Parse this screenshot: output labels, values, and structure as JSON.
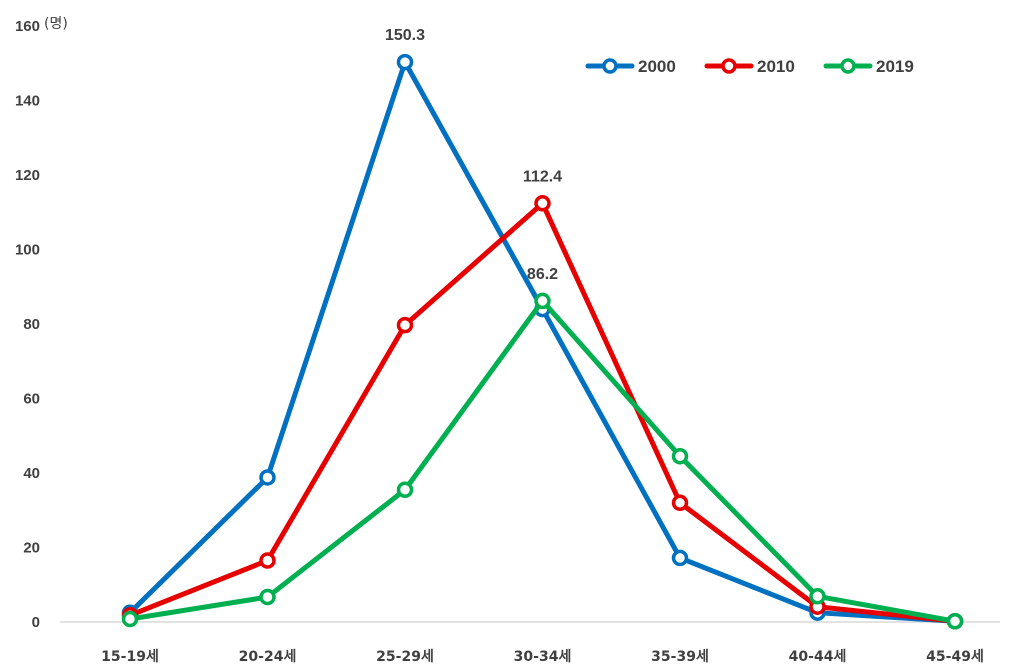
{
  "chart_data": {
    "type": "line",
    "unit_label": "(명)",
    "categories": [
      "15-19세",
      "20-24세",
      "25-29세",
      "30-34세",
      "35-39세",
      "40-44세",
      "45-49세"
    ],
    "ylim": [
      0,
      160
    ],
    "yticks": [
      0,
      20,
      40,
      60,
      80,
      100,
      120,
      140,
      160
    ],
    "grid": false,
    "legend_position": "top-right",
    "series": [
      {
        "name": "2000",
        "color": "#0070C0",
        "values": [
          2.5,
          38.8,
          150.3,
          84.0,
          17.2,
          2.5,
          0.2
        ]
      },
      {
        "name": "2010",
        "color": "#E60000",
        "values": [
          1.8,
          16.5,
          79.7,
          112.4,
          32.0,
          4.1,
          0.2
        ]
      },
      {
        "name": "2019",
        "color": "#00B050",
        "values": [
          0.8,
          6.7,
          35.5,
          86.2,
          44.5,
          6.9,
          0.2
        ]
      }
    ],
    "annotations": [
      {
        "text": "150.3",
        "series": 0,
        "index": 2
      },
      {
        "text": "112.4",
        "series": 1,
        "index": 3
      },
      {
        "text": "86.2",
        "series": 2,
        "index": 3
      }
    ]
  }
}
